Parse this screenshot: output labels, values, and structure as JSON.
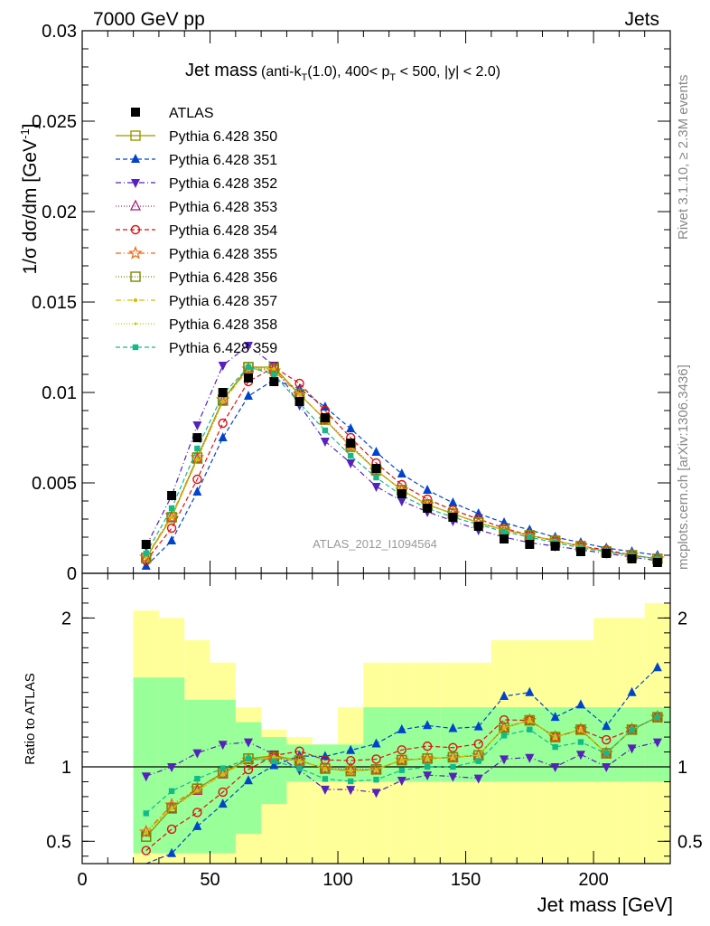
{
  "header": {
    "left": "7000 GeV pp",
    "right": "Jets"
  },
  "side": {
    "rivet": "Rivet 3.1.10, ≥ 2.3M events",
    "mcplots": "mcplots.cern.ch [arXiv:1306.3436]"
  },
  "colors": {
    "atlas": "#000000",
    "band_inner": "#99ff99",
    "band_outer": "#ffff99"
  },
  "chart_data": {
    "type": "scatter",
    "title_main": "Jet mass",
    "title_sub": "(anti-k",
    "title_sub_index": "T",
    "title_sub_mid": "(1.0), 400< p",
    "title_sub_index2": "T",
    "title_sub_end": " < 500, |y| < 2.0)",
    "watermark": "ATLAS_2012_I1094564",
    "xlabel": "Jet mass [GeV]",
    "ylabel": "1/σ dσ/dm [GeV",
    "ylabel_sup": "-1",
    "ylabel_end": "]",
    "ratio_ylabel": "Ratio to ATLAS",
    "xlim": [
      0,
      230
    ],
    "ylim": [
      0,
      0.03
    ],
    "ratio_ylim": [
      0.35,
      2.3
    ],
    "x_ticks": [
      0,
      50,
      100,
      150,
      200
    ],
    "x_tick_labels": [
      "0",
      "50",
      "100",
      "150",
      "200"
    ],
    "y_ticks": [
      0,
      0.005,
      0.01,
      0.015,
      0.02,
      0.025,
      0.03
    ],
    "y_tick_labels": [
      "0",
      "0.005",
      "0.01",
      "0.015",
      "0.02",
      "0.025",
      "0.03"
    ],
    "ratio_ticks": [
      0.5,
      1,
      2
    ],
    "ratio_tick_labels": [
      "0.5",
      "1",
      "2"
    ],
    "x": [
      25,
      35,
      45,
      55,
      65,
      75,
      85,
      95,
      105,
      115,
      125,
      135,
      145,
      155,
      165,
      175,
      185,
      195,
      205,
      215,
      225
    ],
    "atlas": [
      0.0016,
      0.0043,
      0.0075,
      0.01,
      0.0108,
      0.0106,
      0.0095,
      0.0086,
      0.0072,
      0.0058,
      0.0044,
      0.0036,
      0.0031,
      0.0026,
      0.0019,
      0.0016,
      0.0015,
      0.0012,
      0.0011,
      0.0008,
      0.0006
    ],
    "band_inner": {
      "lo": [
        0.42,
        0.42,
        0.42,
        0.42,
        0.55,
        0.75,
        0.9,
        0.9,
        0.9,
        0.9,
        0.9,
        0.9,
        0.9,
        0.9,
        0.9,
        0.9,
        0.9,
        0.9,
        0.9,
        0.9,
        0.9
      ],
      "hi": [
        1.6,
        1.6,
        1.45,
        1.45,
        1.3,
        1.2,
        1.15,
        1.15,
        1.15,
        1.4,
        1.4,
        1.4,
        1.4,
        1.4,
        1.4,
        1.4,
        1.4,
        1.4,
        1.4,
        1.4,
        1.4
      ]
    },
    "band_outer": {
      "lo": [
        0.35,
        0.35,
        0.35,
        0.35,
        0.35,
        0.35,
        0.35,
        0.35,
        0.35,
        0.35,
        0.35,
        0.35,
        0.35,
        0.35,
        0.35,
        0.35,
        0.35,
        0.35,
        0.35,
        0.35,
        0.35
      ],
      "hi": [
        2.05,
        2.0,
        1.85,
        1.7,
        1.4,
        1.25,
        1.2,
        1.15,
        1.4,
        1.7,
        1.7,
        1.7,
        1.7,
        1.7,
        1.85,
        1.85,
        1.85,
        1.85,
        2.0,
        2.0,
        2.1
      ]
    },
    "ratio_ref": 1,
    "legend_atlas": "ATLAS",
    "series": [
      {
        "name": "Pythia 6.428 350",
        "color": "#999900",
        "marker": "square-open",
        "dash": "",
        "values": [
          0.00085,
          0.0031,
          0.0064,
          0.0096,
          0.0114,
          0.0114,
          0.0099,
          0.0085,
          0.007,
          0.0057,
          0.0046,
          0.0038,
          0.0033,
          0.0028,
          0.0024,
          0.0021,
          0.0018,
          0.0015,
          0.0012,
          0.001,
          0.0008
        ]
      },
      {
        "name": "Pythia 6.428 351",
        "color": "#0044cc",
        "marker": "triangle-up",
        "dash": "5,3",
        "values": [
          0.0004,
          0.0018,
          0.0045,
          0.0075,
          0.0098,
          0.0107,
          0.0102,
          0.0092,
          0.008,
          0.0067,
          0.0055,
          0.0046,
          0.0039,
          0.0033,
          0.0028,
          0.0024,
          0.002,
          0.0017,
          0.0014,
          0.0012,
          0.001
        ]
      },
      {
        "name": "Pythia 6.428 352",
        "color": "#5522bb",
        "marker": "triangle-down",
        "dash": "6,3,1,3",
        "values": [
          0.0015,
          0.0043,
          0.0082,
          0.0115,
          0.0126,
          0.0115,
          0.0093,
          0.0073,
          0.0061,
          0.0048,
          0.004,
          0.0034,
          0.0029,
          0.0024,
          0.002,
          0.0017,
          0.0015,
          0.0013,
          0.0011,
          0.0009,
          0.0007
        ]
      },
      {
        "name": "Pythia 6.428 353",
        "color": "#aa2277",
        "marker": "triangle-open",
        "dash": "1,2",
        "values": [
          0.0009,
          0.0031,
          0.0063,
          0.0095,
          0.0113,
          0.0113,
          0.0099,
          0.0085,
          0.0071,
          0.0057,
          0.0046,
          0.0038,
          0.0033,
          0.0028,
          0.0024,
          0.0021,
          0.0018,
          0.0015,
          0.0012,
          0.001,
          0.0008
        ]
      },
      {
        "name": "Pythia 6.428 354",
        "color": "#dd1111",
        "marker": "circle-open",
        "dash": "5,3",
        "values": [
          0.0007,
          0.0025,
          0.0052,
          0.0083,
          0.0106,
          0.0114,
          0.0105,
          0.009,
          0.0075,
          0.0061,
          0.0049,
          0.0041,
          0.0035,
          0.003,
          0.0025,
          0.0021,
          0.0018,
          0.0015,
          0.0013,
          0.001,
          0.0008
        ]
      },
      {
        "name": "Pythia 6.428 355",
        "color": "#ee6611",
        "marker": "star-open",
        "dash": "6,3,1,3",
        "values": [
          0.0009,
          0.0032,
          0.0064,
          0.0096,
          0.0113,
          0.0112,
          0.0099,
          0.0085,
          0.007,
          0.0057,
          0.0046,
          0.0038,
          0.0033,
          0.0028,
          0.0024,
          0.0021,
          0.0018,
          0.0015,
          0.0012,
          0.001,
          0.0008
        ]
      },
      {
        "name": "Pythia 6.428 356",
        "color": "#778800",
        "marker": "square-open",
        "dash": "1,2",
        "values": [
          0.00085,
          0.0031,
          0.0064,
          0.0096,
          0.0114,
          0.0113,
          0.0099,
          0.0085,
          0.007,
          0.0057,
          0.0046,
          0.0038,
          0.0033,
          0.0028,
          0.0024,
          0.0021,
          0.0018,
          0.0015,
          0.0012,
          0.001,
          0.0008
        ]
      },
      {
        "name": "Pythia 6.428 357",
        "color": "#ddbb00",
        "marker": "dot",
        "dash": "6,3,1,3",
        "values": [
          0.0009,
          0.0031,
          0.0063,
          0.0095,
          0.0113,
          0.0113,
          0.0099,
          0.0085,
          0.007,
          0.0057,
          0.0046,
          0.0038,
          0.0033,
          0.0028,
          0.0024,
          0.0021,
          0.0018,
          0.0015,
          0.0012,
          0.001,
          0.0008
        ]
      },
      {
        "name": "Pythia 6.428 358",
        "color": "#bbcc00",
        "marker": "dot-small",
        "dash": "1,2",
        "values": [
          0.0009,
          0.0031,
          0.0063,
          0.0095,
          0.0113,
          0.0113,
          0.0099,
          0.0085,
          0.007,
          0.0057,
          0.0046,
          0.0038,
          0.0033,
          0.0028,
          0.0024,
          0.0021,
          0.0018,
          0.0015,
          0.0012,
          0.001,
          0.0008
        ]
      },
      {
        "name": "Pythia 6.428 359",
        "color": "#11bb88",
        "marker": "square-small",
        "dash": "5,3",
        "values": [
          0.0011,
          0.0036,
          0.0069,
          0.0099,
          0.0114,
          0.011,
          0.0094,
          0.0079,
          0.0065,
          0.0053,
          0.0043,
          0.0036,
          0.0031,
          0.0027,
          0.0023,
          0.002,
          0.0017,
          0.0014,
          0.0012,
          0.001,
          0.0008
        ]
      }
    ]
  }
}
